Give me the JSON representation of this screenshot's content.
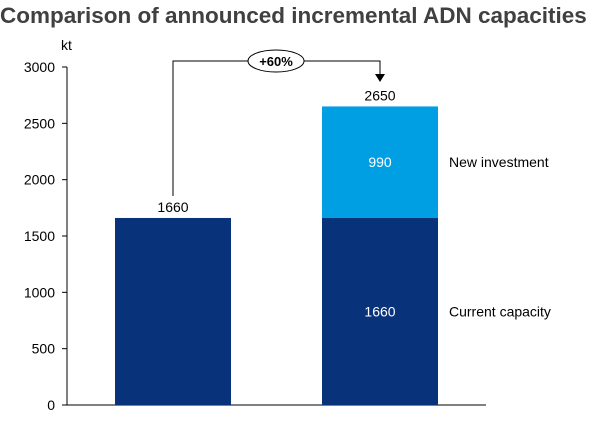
{
  "title": "Comparison of announced incremental ADN capacities",
  "colors": {
    "current": "#08327A",
    "new": "#009FE3",
    "axis": "#000000",
    "title": "#404040"
  },
  "chart_data": {
    "type": "bar",
    "stacked": true,
    "title": "Comparison of announced incremental ADN capacities",
    "ylabel": "kt",
    "xlabel": "",
    "ylim": [
      0,
      3000
    ],
    "yticks": [
      0,
      500,
      1000,
      1500,
      2000,
      2500,
      3000
    ],
    "grid": false,
    "categories": [
      "",
      ""
    ],
    "series": [
      {
        "name": "Current capacity",
        "values": [
          1660,
          1660
        ],
        "labels": [
          "",
          "1660"
        ],
        "color": "#08327A"
      },
      {
        "name": "New investment",
        "values": [
          0,
          990
        ],
        "labels": [
          "",
          "990"
        ],
        "color": "#009FE3"
      }
    ],
    "totals": [
      "1660",
      "2650"
    ],
    "annotation": "+60%"
  }
}
